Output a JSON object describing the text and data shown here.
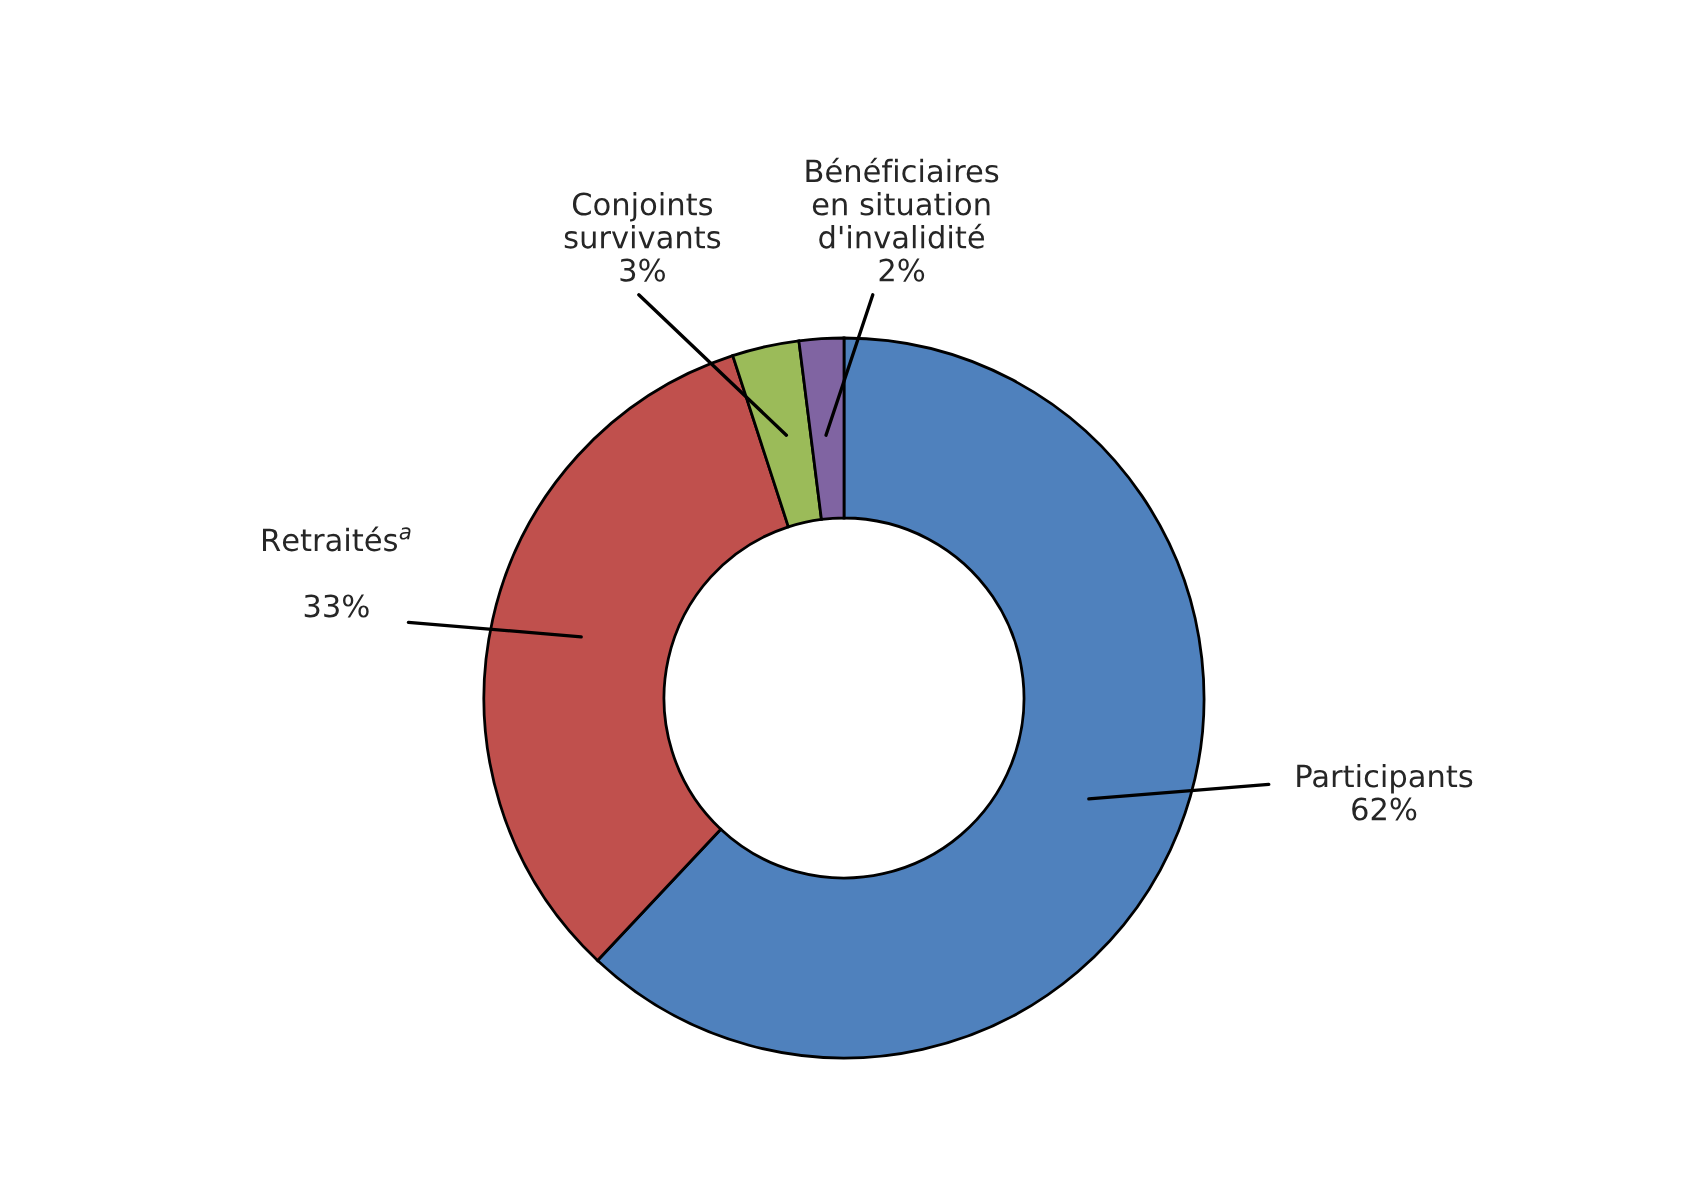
{
  "chart_data": {
    "type": "donut",
    "categories": [
      "Participants",
      "Retraités$^{a}$",
      "Conjoints\nsurvivants",
      "Bénéficiaires\nen situation\nd'invalidité"
    ],
    "values": [
      62,
      33,
      3,
      2
    ],
    "colors": [
      "#4f81bd",
      "#c0504d",
      "#9bbb59",
      "#8064a2"
    ],
    "value_labels": [
      "62%",
      "33%",
      "3%",
      "2%"
    ],
    "legend": false
  }
}
